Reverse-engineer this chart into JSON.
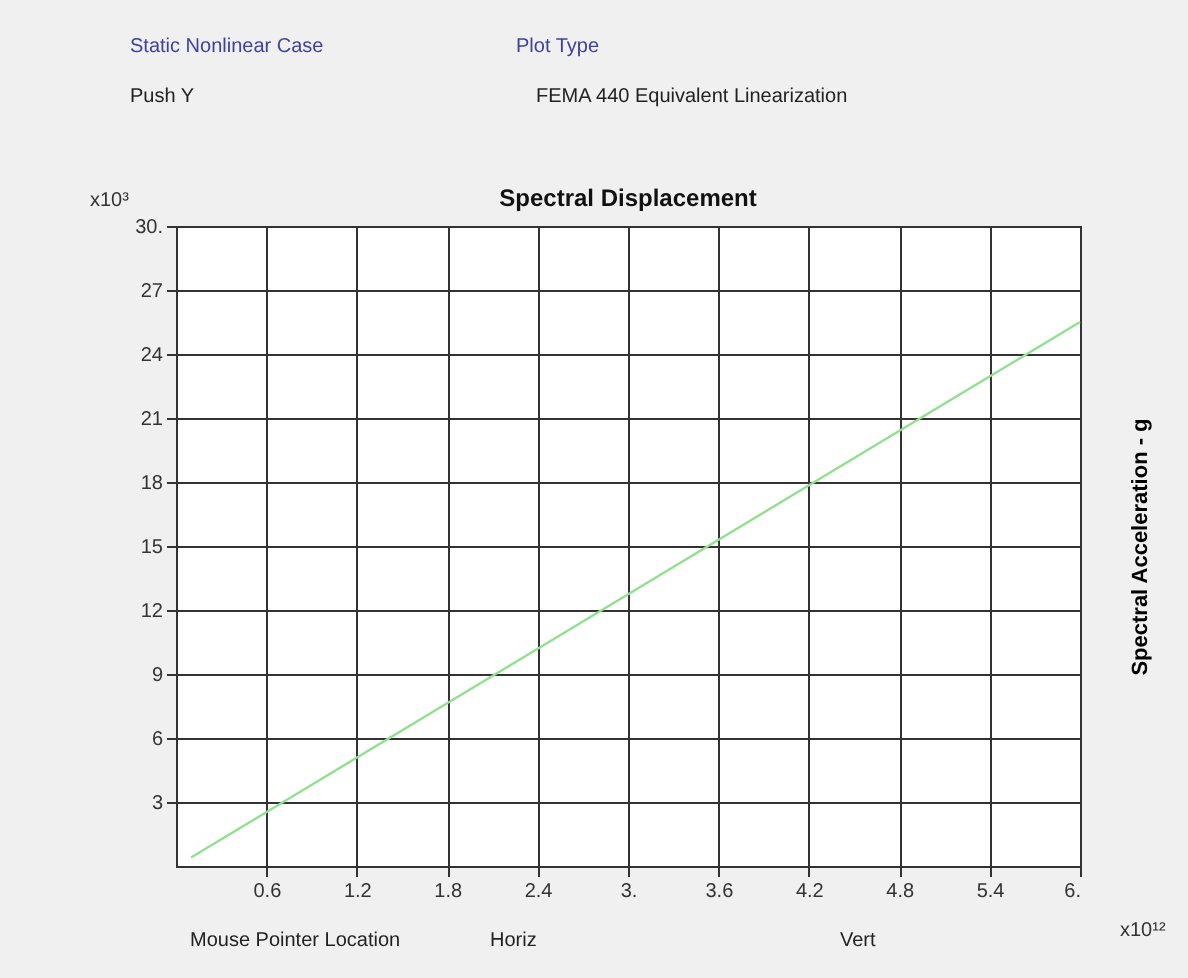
{
  "chart_data": {
    "type": "line",
    "title": "Spectral Displacement",
    "ylabel": "Spectral Acceleration - g",
    "x": [
      0.1,
      6
    ],
    "series": [
      {
        "color": "#90e090",
        "values": [
          0.4,
          25.5
        ]
      }
    ],
    "xlim": [
      0,
      6
    ],
    "ylim": [
      0,
      30
    ],
    "xticks": [
      0.6,
      1.2,
      1.8,
      2.4,
      {
        "value": 3,
        "label": "3."
      },
      3.6,
      4.2,
      4.8,
      5.4,
      {
        "value": 6,
        "label": "6."
      }
    ],
    "yticks": [
      3,
      6,
      9,
      12,
      15,
      18,
      21,
      24,
      27,
      {
        "value": 30,
        "label": "30."
      }
    ],
    "grid": true,
    "marker": "none",
    "line_style": "solid",
    "annotations": [
      "Static Nonlinear Case",
      "Push Y",
      "Plot Type",
      "FEMA 440 Equivalent Linearization",
      "x10³",
      "x10¹²",
      "Mouse Pointer Location",
      "Horiz",
      "Vert"
    ]
  }
}
